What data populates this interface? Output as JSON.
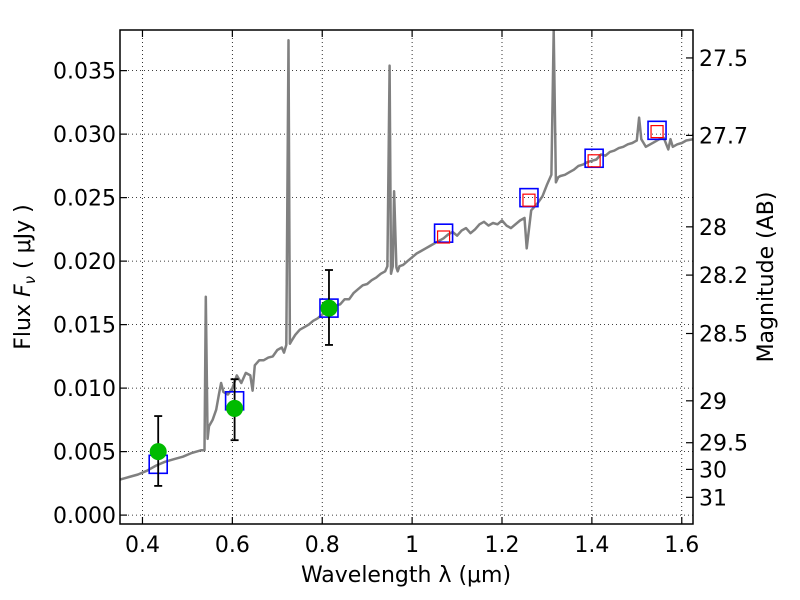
{
  "chart_data": {
    "type": "line",
    "xlabel": "Wavelength  λ (μm)",
    "ylabel": "Flux  F_ν  ( μJy )",
    "ylabel_parts": {
      "prefix": "Flux  ",
      "symbol": "F",
      "subscript": "ν",
      "suffix": "  ( μJy )"
    },
    "y2label": "Magnitude (AB)",
    "xlim": [
      0.35,
      1.625
    ],
    "ylim": [
      -0.0007,
      0.0382
    ],
    "grid": true,
    "x_ticks": [
      0.4,
      0.6,
      0.8,
      1.0,
      1.2,
      1.4,
      1.6
    ],
    "x_tick_labels": [
      "0.4",
      "0.6",
      "0.8",
      "1",
      "1.2",
      "1.4",
      "1.6"
    ],
    "y_ticks": [
      0.0,
      0.005,
      0.01,
      0.015,
      0.02,
      0.025,
      0.03,
      0.035
    ],
    "y_tick_labels": [
      "0.000",
      "0.005",
      "0.010",
      "0.015",
      "0.020",
      "0.025",
      "0.030",
      "0.035"
    ],
    "y2_ticks": [
      {
        "label": "27.5",
        "flux": 0.036
      },
      {
        "label": "27.7",
        "flux": 0.0299
      },
      {
        "label": "28",
        "flux": 0.0227
      },
      {
        "label": "28.2",
        "flux": 0.0189
      },
      {
        "label": "28.5",
        "flux": 0.0143
      },
      {
        "label": "29",
        "flux": 0.009
      },
      {
        "label": "29.5",
        "flux": 0.0057
      },
      {
        "label": "30",
        "flux": 0.0036
      },
      {
        "label": "31",
        "flux": 0.0014
      }
    ],
    "series": [
      {
        "kind": "spectrum",
        "color": "#808080",
        "x": [
          0.35,
          0.37,
          0.39,
          0.41,
          0.43,
          0.45,
          0.47,
          0.49,
          0.51,
          0.53,
          0.538,
          0.541,
          0.545,
          0.548,
          0.556,
          0.564,
          0.57,
          0.575,
          0.58,
          0.59,
          0.6,
          0.61,
          0.62,
          0.63,
          0.64,
          0.645,
          0.65,
          0.66,
          0.67,
          0.68,
          0.69,
          0.7,
          0.71,
          0.715,
          0.72,
          0.725,
          0.728,
          0.733,
          0.74,
          0.75,
          0.76,
          0.77,
          0.78,
          0.79,
          0.8,
          0.81,
          0.82,
          0.83,
          0.84,
          0.85,
          0.86,
          0.87,
          0.88,
          0.89,
          0.9,
          0.91,
          0.92,
          0.93,
          0.94,
          0.945,
          0.95,
          0.953,
          0.957,
          0.96,
          0.965,
          0.968,
          0.972,
          0.98,
          0.99,
          1.0,
          1.01,
          1.02,
          1.03,
          1.04,
          1.05,
          1.06,
          1.07,
          1.08,
          1.09,
          1.1,
          1.11,
          1.12,
          1.13,
          1.14,
          1.15,
          1.16,
          1.17,
          1.18,
          1.19,
          1.2,
          1.21,
          1.22,
          1.24,
          1.25,
          1.255,
          1.265,
          1.27,
          1.28,
          1.29,
          1.3,
          1.31,
          1.315,
          1.32,
          1.325,
          1.33,
          1.34,
          1.35,
          1.36,
          1.37,
          1.38,
          1.39,
          1.4,
          1.41,
          1.42,
          1.43,
          1.44,
          1.45,
          1.46,
          1.47,
          1.48,
          1.49,
          1.5,
          1.505,
          1.51,
          1.515,
          1.52,
          1.53,
          1.54,
          1.55,
          1.56,
          1.57,
          1.575,
          1.58,
          1.59,
          1.6,
          1.61,
          1.625
        ],
        "y": [
          0.0028,
          0.003,
          0.0032,
          0.0035,
          0.0039,
          0.0042,
          0.0044,
          0.0046,
          0.0049,
          0.0051,
          0.0051,
          0.0172,
          0.006,
          0.007,
          0.0075,
          0.0083,
          0.0095,
          0.0104,
          0.0097,
          0.0095,
          0.01,
          0.011,
          0.0104,
          0.0112,
          0.011,
          0.0098,
          0.0118,
          0.0122,
          0.0122,
          0.0124,
          0.0125,
          0.013,
          0.0132,
          0.0128,
          0.0134,
          0.0374,
          0.0135,
          0.0138,
          0.0142,
          0.0146,
          0.0148,
          0.015,
          0.0153,
          0.0155,
          0.0158,
          0.016,
          0.0162,
          0.0165,
          0.0166,
          0.017,
          0.017,
          0.0175,
          0.0178,
          0.0181,
          0.0182,
          0.0185,
          0.0187,
          0.019,
          0.0192,
          0.0196,
          0.0354,
          0.019,
          0.0196,
          0.0255,
          0.0195,
          0.0192,
          0.0196,
          0.0197,
          0.02,
          0.0203,
          0.0206,
          0.0208,
          0.021,
          0.0212,
          0.0214,
          0.0216,
          0.0218,
          0.0221,
          0.0223,
          0.022,
          0.0224,
          0.0226,
          0.0222,
          0.0225,
          0.0229,
          0.0231,
          0.0228,
          0.023,
          0.0229,
          0.0232,
          0.0228,
          0.0226,
          0.0232,
          0.0234,
          0.021,
          0.024,
          0.0242,
          0.0246,
          0.0251,
          0.026,
          0.0268,
          0.0382,
          0.0262,
          0.0266,
          0.0267,
          0.0268,
          0.027,
          0.0272,
          0.0275,
          0.0276,
          0.0278,
          0.0279,
          0.028,
          0.0284,
          0.0283,
          0.0286,
          0.0287,
          0.0289,
          0.029,
          0.0292,
          0.0293,
          0.0295,
          0.0313,
          0.0296,
          0.0293,
          0.029,
          0.0292,
          0.0294,
          0.0296,
          0.0297,
          0.0288,
          0.0296,
          0.029,
          0.0292,
          0.0293,
          0.0295,
          0.0296
        ]
      },
      {
        "kind": "model_photometry",
        "marker": "square",
        "color": "#0000ff",
        "x": [
          0.435,
          0.605,
          0.815,
          1.07,
          1.26,
          1.405,
          1.545
        ],
        "y": [
          0.004,
          0.009,
          0.0163,
          0.0222,
          0.025,
          0.0281,
          0.0303
        ]
      },
      {
        "kind": "photometry_upper",
        "marker": "square",
        "color": "#ff0000",
        "x": [
          1.07,
          1.26,
          1.405,
          1.545
        ],
        "y": [
          0.0219,
          0.0248,
          0.0279,
          0.0302
        ]
      },
      {
        "kind": "photometry_detected",
        "marker": "circle",
        "color": "#00bb00",
        "x": [
          0.435,
          0.605,
          0.815
        ],
        "y": [
          0.005,
          0.0084,
          0.0163
        ],
        "yerr_low": [
          0.0023,
          0.0059,
          0.0134
        ],
        "yerr_high": [
          0.0078,
          0.0107,
          0.0193
        ]
      }
    ]
  }
}
